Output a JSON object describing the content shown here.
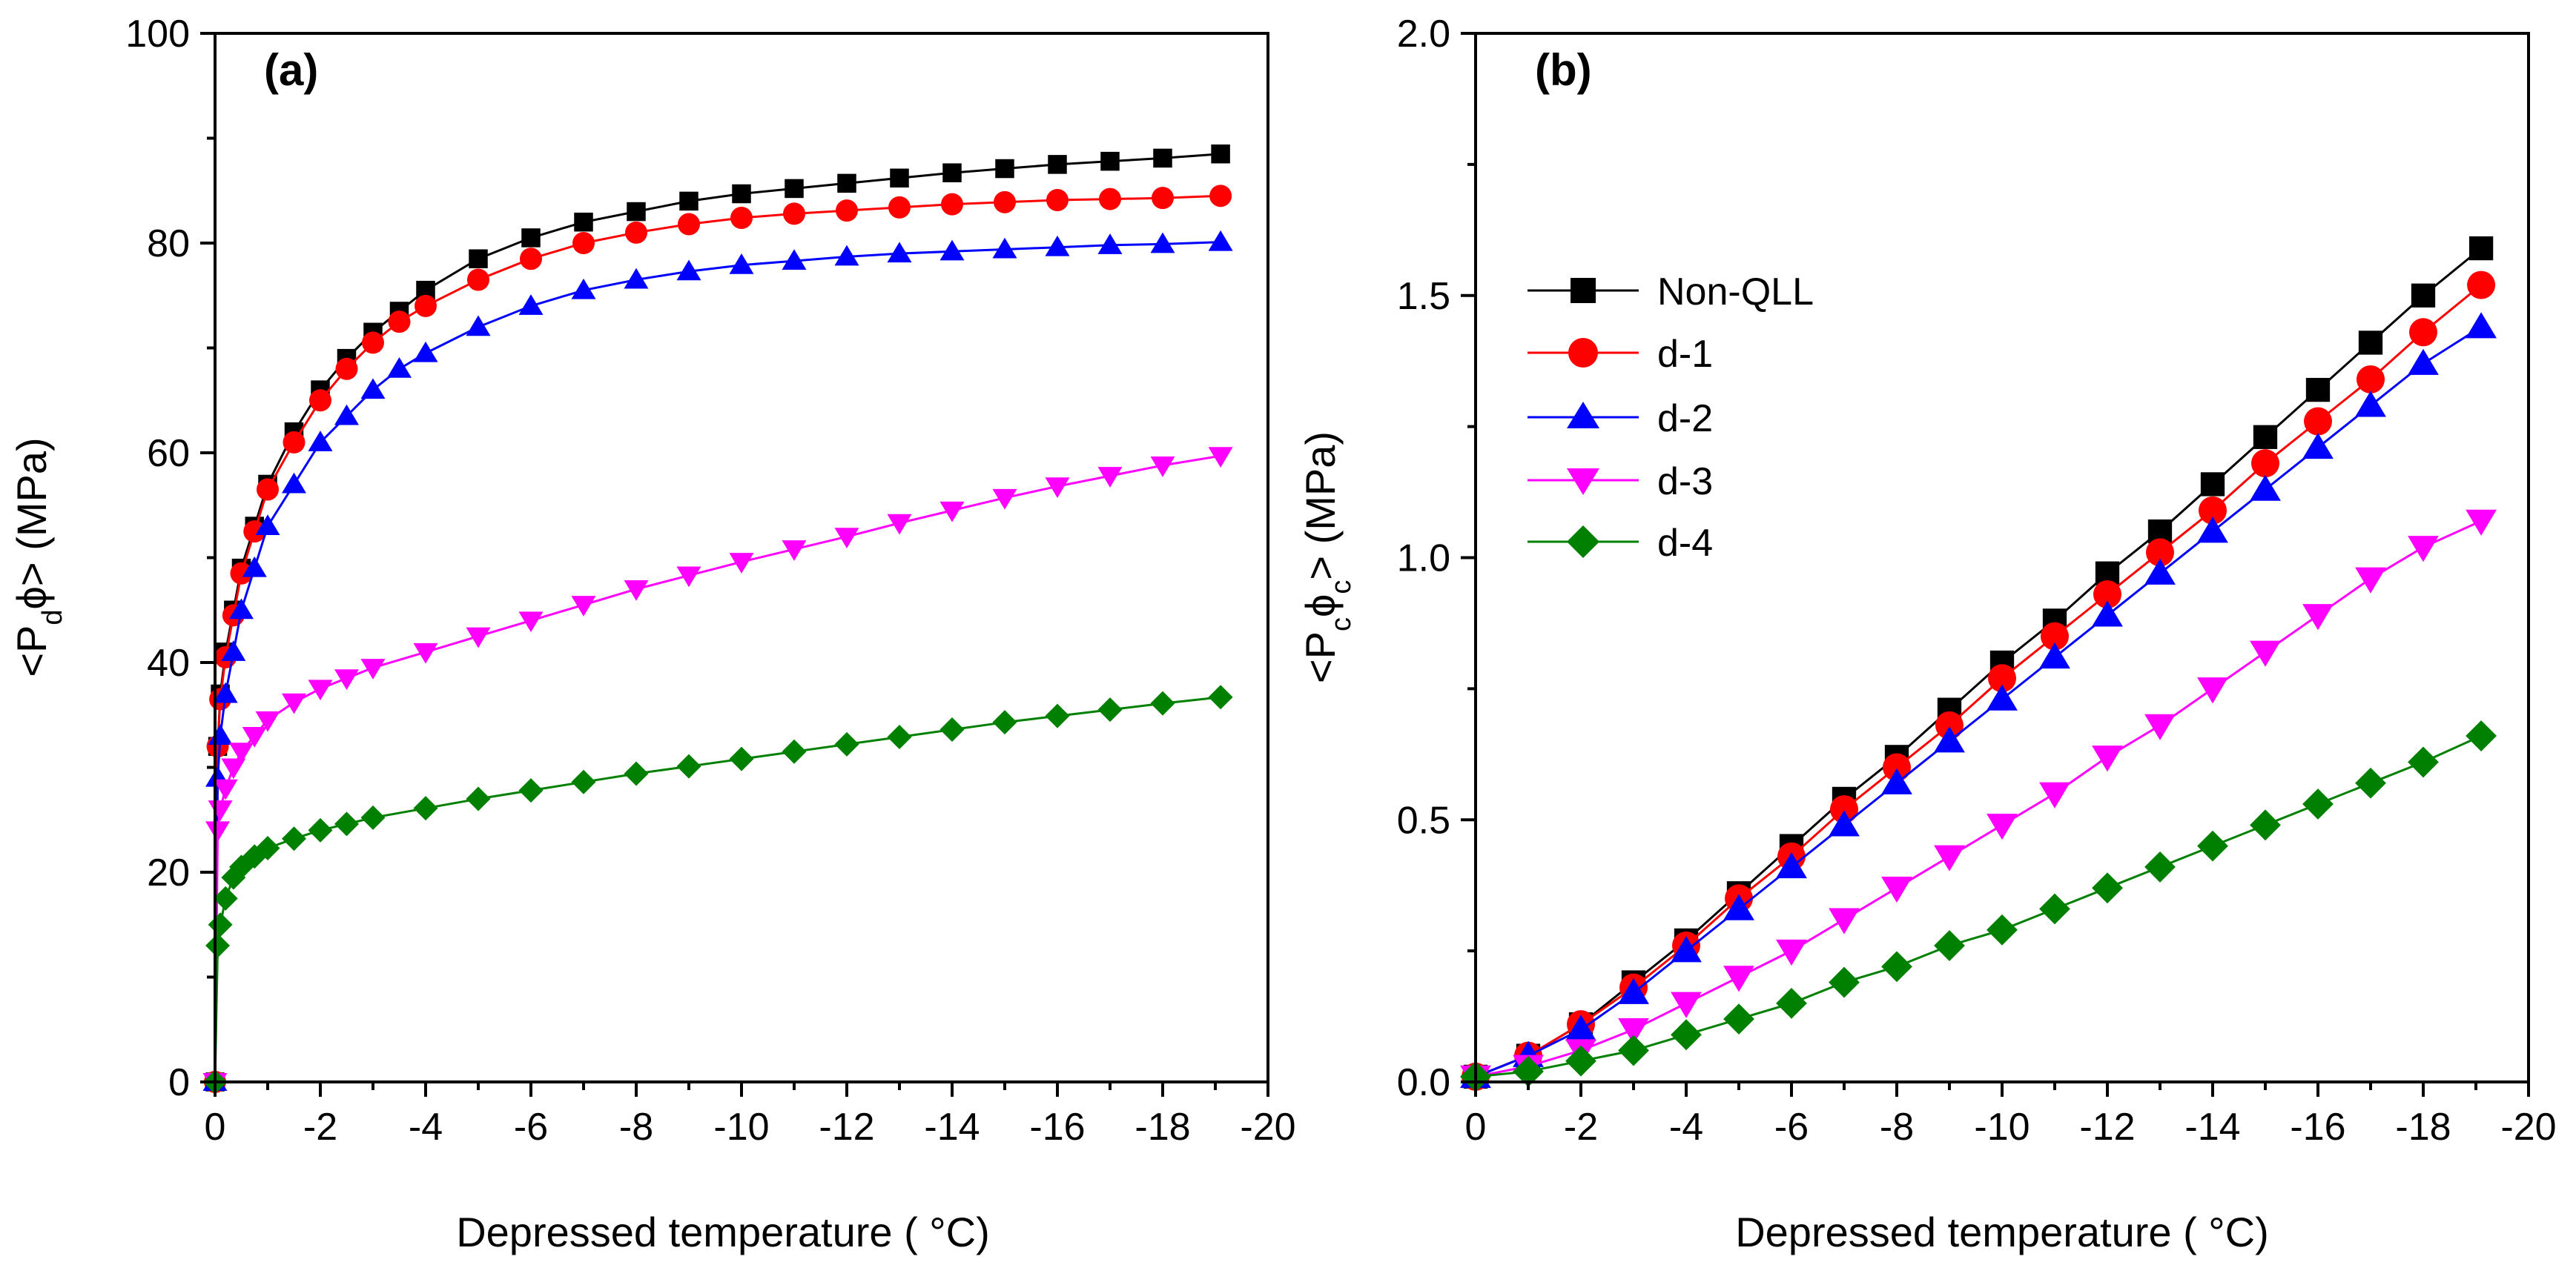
{
  "chart_data": [
    {
      "type": "line",
      "panel_label": "(a)",
      "xlabel": "Depressed temperature ( °C)",
      "ylabel_parts": {
        "a": "<P",
        "b": "d",
        "c": "ϕ>",
        "d": " (MPa)"
      },
      "xlim": [
        0,
        -20
      ],
      "ylim": [
        0,
        100
      ],
      "x_ticks": [
        0,
        -2,
        -4,
        -6,
        -8,
        -10,
        -12,
        -14,
        -16,
        -18,
        -20
      ],
      "x_tick_labels": [
        "0",
        "-2",
        "-4",
        "-6",
        "-8",
        "-10",
        "-12",
        "-14",
        "-16",
        "-18",
        "-20"
      ],
      "y_ticks": [
        0,
        20,
        40,
        60,
        80,
        100
      ],
      "y_tick_labels": [
        "0",
        "20",
        "40",
        "60",
        "80",
        "100"
      ],
      "legend": false,
      "series": [
        {
          "name": "Non-QLL",
          "color": "#000000",
          "marker": "square",
          "x": [
            0,
            -0.05,
            -0.1,
            -0.2,
            -0.35,
            -0.5,
            -0.75,
            -1,
            -1.5,
            -2,
            -2.5,
            -3,
            -3.5,
            -4,
            -5,
            -6,
            -7,
            -8,
            -9,
            -10,
            -11,
            -12,
            -13,
            -14,
            -15,
            -16,
            -17,
            -18,
            -19.1
          ],
          "y": [
            0,
            32,
            37,
            41,
            45,
            49,
            53,
            57,
            62,
            66,
            69,
            71.5,
            73.5,
            75.5,
            78.5,
            80.5,
            82,
            83,
            84,
            84.7,
            85.2,
            85.7,
            86.2,
            86.7,
            87.1,
            87.5,
            87.8,
            88.1,
            88.5
          ]
        },
        {
          "name": "d-1",
          "color": "#ff0000",
          "marker": "circle",
          "x": [
            0,
            -0.05,
            -0.1,
            -0.2,
            -0.35,
            -0.5,
            -0.75,
            -1,
            -1.5,
            -2,
            -2.5,
            -3,
            -3.5,
            -4,
            -5,
            -6,
            -7,
            -8,
            -9,
            -10,
            -11,
            -12,
            -13,
            -14,
            -15,
            -16,
            -17,
            -18,
            -19.1
          ],
          "y": [
            0,
            32,
            36.5,
            40.5,
            44.5,
            48.5,
            52.5,
            56.5,
            61,
            65,
            68,
            70.5,
            72.5,
            74,
            76.5,
            78.5,
            80,
            81,
            81.8,
            82.4,
            82.8,
            83.1,
            83.4,
            83.7,
            83.9,
            84.1,
            84.2,
            84.3,
            84.5
          ]
        },
        {
          "name": "d-2",
          "color": "#0000ff",
          "marker": "triangle-up",
          "x": [
            0,
            -0.05,
            -0.1,
            -0.2,
            -0.35,
            -0.5,
            -0.75,
            -1,
            -1.5,
            -2,
            -2.5,
            -3,
            -3.5,
            -4,
            -5,
            -6,
            -7,
            -8,
            -9,
            -10,
            -11,
            -12,
            -13,
            -14,
            -15,
            -16,
            -17,
            -18,
            -19.1
          ],
          "y": [
            0,
            29,
            33,
            37,
            41,
            45,
            49,
            53,
            57,
            61,
            63.5,
            66,
            68,
            69.5,
            72,
            74,
            75.5,
            76.5,
            77.3,
            77.9,
            78.3,
            78.7,
            79,
            79.2,
            79.4,
            79.6,
            79.8,
            79.9,
            80.1
          ]
        },
        {
          "name": "d-3",
          "color": "#ff00ff",
          "marker": "triangle-down",
          "x": [
            0,
            -0.05,
            -0.1,
            -0.2,
            -0.35,
            -0.5,
            -0.75,
            -1,
            -1.5,
            -2,
            -2.5,
            -3,
            -4,
            -5,
            -6,
            -7,
            -8,
            -9,
            -10,
            -11,
            -12,
            -13,
            -14,
            -15,
            -16,
            -17,
            -18,
            -19.1
          ],
          "y": [
            0,
            24,
            26,
            28,
            30,
            31.5,
            33,
            34.5,
            36.2,
            37.5,
            38.5,
            39.5,
            41,
            42.5,
            44,
            45.5,
            47,
            48.3,
            49.6,
            50.8,
            52,
            53.3,
            54.5,
            55.7,
            56.8,
            57.8,
            58.8,
            59.7
          ]
        },
        {
          "name": "d-4",
          "color": "#008000",
          "marker": "diamond",
          "x": [
            0,
            -0.05,
            -0.1,
            -0.2,
            -0.35,
            -0.5,
            -0.75,
            -1,
            -1.5,
            -2,
            -2.5,
            -3,
            -4,
            -5,
            -6,
            -7,
            -8,
            -9,
            -10,
            -11,
            -12,
            -13,
            -14,
            -15,
            -16,
            -17,
            -18,
            -19.1
          ],
          "y": [
            0,
            13,
            15,
            17.5,
            19.5,
            20.5,
            21.5,
            22.3,
            23.2,
            24,
            24.6,
            25.2,
            26.1,
            27,
            27.8,
            28.6,
            29.4,
            30.1,
            30.8,
            31.5,
            32.2,
            32.9,
            33.6,
            34.3,
            34.9,
            35.5,
            36.1,
            36.7
          ]
        }
      ]
    },
    {
      "type": "line",
      "panel_label": "(b)",
      "xlabel": "Depressed temperature ( °C)",
      "ylabel_parts": {
        "a": "<P",
        "b": "c",
        "c": "ϕ",
        "d": "c",
        "e": "> (MPa)"
      },
      "xlim": [
        0,
        -20
      ],
      "ylim": [
        0,
        2.0
      ],
      "x_ticks": [
        0,
        -2,
        -4,
        -6,
        -8,
        -10,
        -12,
        -14,
        -16,
        -18,
        -20
      ],
      "x_tick_labels": [
        "0",
        "-2",
        "-4",
        "-6",
        "-8",
        "-10",
        "-12",
        "-14",
        "-16",
        "-18",
        "-20"
      ],
      "y_ticks": [
        0,
        0.5,
        1.0,
        1.5,
        2.0
      ],
      "y_tick_labels": [
        "0.0",
        "0.5",
        "1.0",
        "1.5",
        "2.0"
      ],
      "legend": true,
      "legend_position": "upper-left",
      "series": [
        {
          "name": "Non-QLL",
          "color": "#000000",
          "marker": "square",
          "x": [
            0,
            -1,
            -2,
            -3,
            -4,
            -5,
            -6,
            -7,
            -8,
            -9,
            -10,
            -11,
            -12,
            -13,
            -14,
            -15,
            -16,
            -17,
            -18,
            -19.1
          ],
          "y": [
            0.01,
            0.05,
            0.11,
            0.19,
            0.27,
            0.36,
            0.45,
            0.54,
            0.62,
            0.71,
            0.8,
            0.88,
            0.97,
            1.05,
            1.14,
            1.23,
            1.32,
            1.41,
            1.5,
            1.59
          ]
        },
        {
          "name": "d-1",
          "color": "#ff0000",
          "marker": "circle",
          "x": [
            0,
            -1,
            -2,
            -3,
            -4,
            -5,
            -6,
            -7,
            -8,
            -9,
            -10,
            -11,
            -12,
            -13,
            -14,
            -15,
            -16,
            -17,
            -18,
            -19.1
          ],
          "y": [
            0.01,
            0.05,
            0.11,
            0.18,
            0.26,
            0.35,
            0.43,
            0.52,
            0.6,
            0.68,
            0.77,
            0.85,
            0.93,
            1.01,
            1.09,
            1.18,
            1.26,
            1.34,
            1.43,
            1.52
          ]
        },
        {
          "name": "d-2",
          "color": "#0000ff",
          "marker": "triangle-up",
          "x": [
            0,
            -1,
            -2,
            -3,
            -4,
            -5,
            -6,
            -7,
            -8,
            -9,
            -10,
            -11,
            -12,
            -13,
            -14,
            -15,
            -16,
            -17,
            -18,
            -19.1
          ],
          "y": [
            0.01,
            0.05,
            0.1,
            0.17,
            0.25,
            0.33,
            0.41,
            0.49,
            0.57,
            0.65,
            0.73,
            0.81,
            0.89,
            0.97,
            1.05,
            1.13,
            1.21,
            1.29,
            1.37,
            1.44
          ]
        },
        {
          "name": "d-3",
          "color": "#ff00ff",
          "marker": "triangle-down",
          "x": [
            0,
            -1,
            -2,
            -3,
            -4,
            -5,
            -6,
            -7,
            -8,
            -9,
            -10,
            -11,
            -12,
            -13,
            -14,
            -15,
            -16,
            -17,
            -18,
            -19.1
          ],
          "y": [
            0.01,
            0.03,
            0.06,
            0.1,
            0.15,
            0.2,
            0.25,
            0.31,
            0.37,
            0.43,
            0.49,
            0.55,
            0.62,
            0.68,
            0.75,
            0.82,
            0.89,
            0.96,
            1.02,
            1.07
          ]
        },
        {
          "name": "d-4",
          "color": "#008000",
          "marker": "diamond",
          "x": [
            0,
            -1,
            -2,
            -3,
            -4,
            -5,
            -6,
            -7,
            -8,
            -9,
            -10,
            -11,
            -12,
            -13,
            -14,
            -15,
            -16,
            -17,
            -18,
            -19.1
          ],
          "y": [
            0.01,
            0.02,
            0.04,
            0.06,
            0.09,
            0.12,
            0.15,
            0.19,
            0.22,
            0.26,
            0.29,
            0.33,
            0.37,
            0.41,
            0.45,
            0.49,
            0.53,
            0.57,
            0.61,
            0.66
          ]
        }
      ]
    }
  ]
}
